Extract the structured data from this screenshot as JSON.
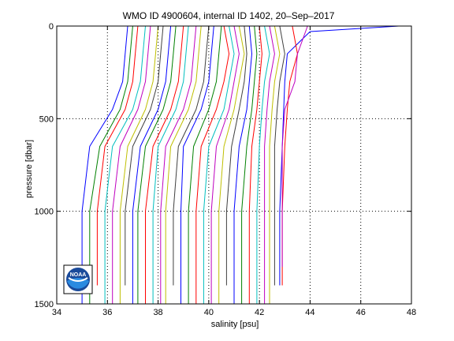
{
  "chart_data": {
    "type": "line",
    "title": "WMO ID 4900604, internal ID 1402, 20–Sep–2017",
    "xlabel": "salinity [psu]",
    "ylabel": "pressure [dbar]",
    "xlim": [
      34,
      48
    ],
    "ylim": [
      1500,
      0
    ],
    "y_reversed": true,
    "grid": true,
    "grid_style": "dotted",
    "xticks": [
      "34",
      "36",
      "38",
      "40",
      "42",
      "44",
      "46",
      "48"
    ],
    "yticks": [
      "0",
      "500",
      "1000",
      "1500"
    ],
    "logo": "noaa-logo",
    "line_colors": [
      "#0000ff",
      "#008000",
      "#ff0000",
      "#00bfbf",
      "#bf00bf",
      "#bfbf00",
      "#404040"
    ],
    "profiles": [
      {
        "color": "#0000ff",
        "x": [
          36.8,
          36.7,
          36.6,
          36.2,
          35.3,
          35.0,
          35.0
        ],
        "y": [
          0,
          150,
          300,
          450,
          650,
          1000,
          1500
        ]
      },
      {
        "color": "#008000",
        "x": [
          37.0,
          36.9,
          36.8,
          36.5,
          35.7,
          35.3,
          35.3
        ],
        "y": [
          0,
          150,
          300,
          450,
          650,
          1000,
          1500
        ]
      },
      {
        "color": "#ff0000",
        "x": [
          37.2,
          37.1,
          37.0,
          36.7,
          35.9,
          35.6,
          35.6
        ],
        "y": [
          0,
          150,
          300,
          450,
          650,
          1000,
          1400
        ]
      },
      {
        "color": "#00bfbf",
        "x": [
          37.5,
          37.4,
          37.3,
          37.0,
          36.2,
          35.9,
          35.9
        ],
        "y": [
          0,
          150,
          300,
          450,
          650,
          1000,
          1500
        ]
      },
      {
        "color": "#bf00bf",
        "x": [
          37.7,
          37.6,
          37.5,
          37.2,
          36.5,
          36.2,
          36.2
        ],
        "y": [
          0,
          150,
          300,
          450,
          650,
          1000,
          1500
        ]
      },
      {
        "color": "#bfbf00",
        "x": [
          38.0,
          37.9,
          37.8,
          37.5,
          36.8,
          36.5,
          36.5
        ],
        "y": [
          0,
          150,
          300,
          450,
          650,
          1000,
          1500
        ]
      },
      {
        "color": "#404040",
        "x": [
          38.2,
          38.1,
          38.0,
          37.7,
          37.0,
          36.7,
          36.7
        ],
        "y": [
          0,
          150,
          300,
          450,
          650,
          1000,
          1400
        ]
      },
      {
        "color": "#0000ff",
        "x": [
          38.5,
          38.4,
          38.3,
          38.0,
          37.3,
          37.0,
          37.0
        ],
        "y": [
          0,
          150,
          300,
          450,
          650,
          1000,
          1500
        ]
      },
      {
        "color": "#008000",
        "x": [
          38.7,
          38.6,
          38.5,
          38.2,
          37.5,
          37.2,
          37.2
        ],
        "y": [
          0,
          150,
          300,
          450,
          650,
          1000,
          1500
        ]
      },
      {
        "color": "#ff0000",
        "x": [
          39.0,
          38.9,
          38.8,
          38.5,
          37.8,
          37.5,
          37.5
        ],
        "y": [
          0,
          150,
          300,
          450,
          650,
          1000,
          1500
        ]
      },
      {
        "color": "#00bfbf",
        "x": [
          39.2,
          39.1,
          39.0,
          38.7,
          38.0,
          37.8,
          37.8
        ],
        "y": [
          0,
          150,
          300,
          450,
          650,
          1000,
          1500
        ]
      },
      {
        "color": "#bf00bf",
        "x": [
          39.5,
          39.4,
          39.3,
          39.0,
          38.3,
          38.1,
          38.1
        ],
        "y": [
          0,
          150,
          300,
          450,
          650,
          1000,
          1500
        ]
      },
      {
        "color": "#bfbf00",
        "x": [
          39.7,
          39.6,
          39.5,
          39.2,
          38.5,
          38.3,
          38.3
        ],
        "y": [
          0,
          150,
          300,
          450,
          650,
          1000,
          1500
        ]
      },
      {
        "color": "#404040",
        "x": [
          40.0,
          39.9,
          39.8,
          39.5,
          38.8,
          38.6,
          38.6
        ],
        "y": [
          0,
          150,
          300,
          450,
          650,
          1000,
          1400
        ]
      },
      {
        "color": "#0000ff",
        "x": [
          40.2,
          40.1,
          40.0,
          39.7,
          39.0,
          38.9,
          38.9
        ],
        "y": [
          0,
          150,
          300,
          450,
          650,
          1000,
          1500
        ]
      },
      {
        "color": "#008000",
        "x": [
          40.5,
          40.4,
          40.3,
          40.0,
          39.4,
          39.2,
          39.2
        ],
        "y": [
          0,
          150,
          300,
          450,
          650,
          1000,
          1500
        ]
      },
      {
        "color": "#ff0000",
        "x": [
          40.6,
          40.8,
          40.6,
          40.3,
          39.7,
          39.5,
          39.5
        ],
        "y": [
          0,
          150,
          300,
          450,
          650,
          1000,
          1500
        ]
      },
      {
        "color": "#00bfbf",
        "x": [
          40.8,
          41.0,
          40.8,
          40.6,
          40.0,
          39.8,
          39.8
        ],
        "y": [
          0,
          150,
          300,
          450,
          650,
          1000,
          1500
        ]
      },
      {
        "color": "#bf00bf",
        "x": [
          41.0,
          41.2,
          41.0,
          40.8,
          40.3,
          40.1,
          40.1
        ],
        "y": [
          0,
          150,
          300,
          450,
          650,
          1000,
          1500
        ]
      },
      {
        "color": "#bfbf00",
        "x": [
          41.2,
          41.4,
          41.2,
          41.0,
          40.6,
          40.4,
          40.4
        ],
        "y": [
          0,
          150,
          300,
          450,
          650,
          1000,
          1500
        ]
      },
      {
        "color": "#404040",
        "x": [
          41.4,
          41.5,
          41.4,
          41.2,
          40.9,
          40.7,
          40.7
        ],
        "y": [
          0,
          150,
          300,
          450,
          650,
          1000,
          1400
        ]
      },
      {
        "color": "#0000ff",
        "x": [
          41.6,
          41.7,
          41.6,
          41.5,
          41.2,
          41.0,
          41.0
        ],
        "y": [
          0,
          150,
          300,
          450,
          650,
          1000,
          1500
        ]
      },
      {
        "color": "#008000",
        "x": [
          41.8,
          41.9,
          41.8,
          41.7,
          41.5,
          41.3,
          41.3
        ],
        "y": [
          0,
          150,
          300,
          450,
          650,
          1000,
          1500
        ]
      },
      {
        "color": "#ff0000",
        "x": [
          42.0,
          42.1,
          42.0,
          41.9,
          41.7,
          41.6,
          41.6
        ],
        "y": [
          0,
          150,
          300,
          450,
          650,
          1000,
          1500
        ]
      },
      {
        "color": "#00bfbf",
        "x": [
          42.2,
          42.4,
          42.2,
          42.1,
          42.0,
          41.9,
          41.9
        ],
        "y": [
          0,
          150,
          300,
          450,
          650,
          1000,
          1500
        ]
      },
      {
        "color": "#bf00bf",
        "x": [
          42.4,
          42.6,
          42.4,
          42.3,
          42.2,
          42.2,
          42.2
        ],
        "y": [
          0,
          150,
          300,
          450,
          650,
          1000,
          1500
        ]
      },
      {
        "color": "#bfbf00",
        "x": [
          42.6,
          42.8,
          42.6,
          42.5,
          42.4,
          42.4,
          42.4
        ],
        "y": [
          0,
          150,
          300,
          450,
          650,
          1000,
          1500
        ]
      },
      {
        "color": "#404040",
        "x": [
          42.8,
          43.0,
          42.8,
          42.7,
          42.6,
          42.6,
          42.6
        ],
        "y": [
          0,
          150,
          300,
          450,
          650,
          1000,
          1400
        ]
      },
      {
        "color": "#0000ff",
        "x": [
          47.5,
          44.0,
          43.1,
          43.0,
          42.9,
          42.8,
          42.8
        ],
        "y": [
          0,
          30,
          150,
          300,
          650,
          1000,
          1400
        ]
      },
      {
        "color": "#ff0000",
        "x": [
          43.3,
          43.5,
          43.2,
          43.1,
          43.0,
          42.9,
          42.9
        ],
        "y": [
          0,
          150,
          300,
          450,
          650,
          1000,
          1400
        ]
      },
      {
        "color": "#bf00bf",
        "x": [
          43.9,
          43.5,
          43.4,
          43.0,
          42.9,
          42.9,
          42.9
        ],
        "y": [
          0,
          150,
          300,
          450,
          650,
          1000,
          1300
        ]
      }
    ]
  }
}
